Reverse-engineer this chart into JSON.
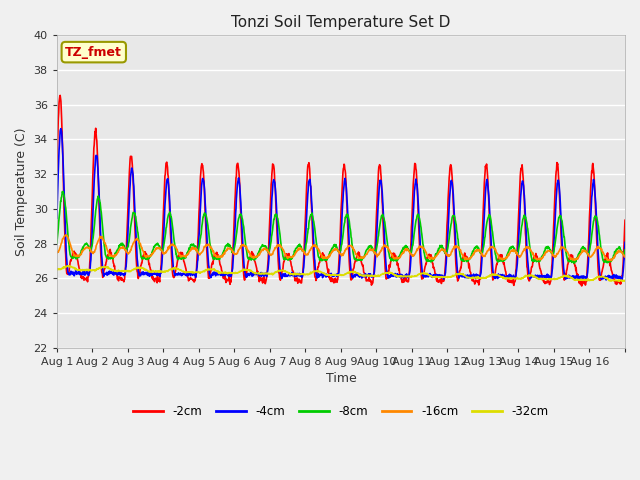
{
  "title": "Tonzi Soil Temperature Set D",
  "xlabel": "Time",
  "ylabel": "Soil Temperature (C)",
  "ylim": [
    22,
    40
  ],
  "yticks": [
    22,
    24,
    26,
    28,
    30,
    32,
    34,
    36,
    38,
    40
  ],
  "annotation": "TZ_fmet",
  "annotation_color": "#cc0000",
  "annotation_bg": "#ffffcc",
  "annotation_border": "#999900",
  "fig_color": "#f0f0f0",
  "plot_bg": "#e8e8e8",
  "series": {
    "-2cm": {
      "color": "#ff0000",
      "lw": 1.2
    },
    "-4cm": {
      "color": "#0000ff",
      "lw": 1.2
    },
    "-8cm": {
      "color": "#00cc00",
      "lw": 1.2
    },
    "-16cm": {
      "color": "#ff8800",
      "lw": 1.2
    },
    "-32cm": {
      "color": "#dddd00",
      "lw": 1.2
    }
  },
  "xtick_labels": [
    "Aug 1",
    "Aug 2",
    "Aug 3",
    "Aug 4",
    "Aug 5",
    "Aug 6",
    "Aug 7",
    "Aug 8",
    "Aug 9",
    "Aug 10",
    "Aug 11",
    "Aug 12",
    "Aug 13",
    "Aug 14",
    "Aug 15",
    "Aug 16"
  ],
  "n_days": 16,
  "samples_per_day": 96
}
